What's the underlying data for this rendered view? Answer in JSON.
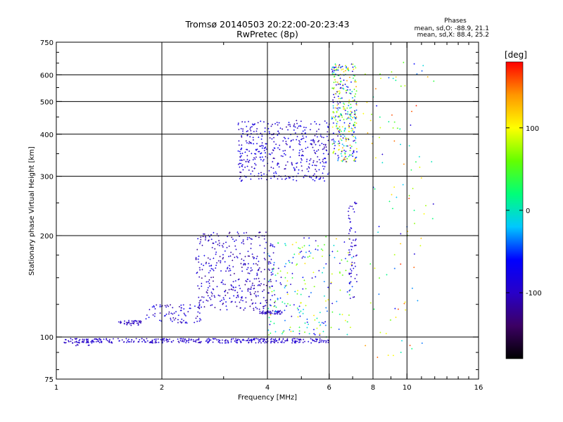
{
  "chart_data": {
    "type": "scatter",
    "title": "Tromsø 20140503 20:22:00-20:23:43",
    "subtitle": "RwPretec (8p)",
    "xlabel": "Frequency [MHz]",
    "ylabel": "Stationary phase Virtual Height [km]",
    "x_scale": "log",
    "y_scale": "log",
    "xlim": [
      1,
      16
    ],
    "ylim": [
      75,
      750
    ],
    "x_ticks": [
      1,
      2,
      4,
      6,
      8,
      10,
      16
    ],
    "x_minor_ticks": [
      3,
      5,
      7,
      9,
      11,
      12,
      13,
      14,
      15
    ],
    "x_grid_lines": [
      2,
      4,
      6,
      8,
      10
    ],
    "y_ticks": [
      75,
      100,
      200,
      300,
      400,
      500,
      600,
      750
    ],
    "y_minor_ticks": [
      80,
      90,
      125,
      150,
      175,
      250,
      350,
      450,
      550,
      650,
      700
    ],
    "y_grid_lines": [
      100,
      200,
      300,
      400,
      500,
      600
    ],
    "stats_title": "Phases",
    "stats": [
      "mean, sd,O: -88.9, 21.1",
      "mean, sd,X: 88.4, 25.2"
    ],
    "colorbar": {
      "label": "[deg]",
      "range": [
        -180,
        180
      ],
      "ticks": [
        -100,
        0,
        100
      ],
      "palette": [
        "#000000",
        "#3c0064",
        "#2800c8",
        "#0000ff",
        "#00c8ff",
        "#00ff78",
        "#64ff00",
        "#ffff00",
        "#ff9600",
        "#ff0000"
      ]
    },
    "series": [
      {
        "x_range": [
          1.05,
          6.0
        ],
        "y_range": [
          96,
          99
        ],
        "phase": [
          -110,
          -80
        ],
        "count": 360
      },
      {
        "x_range": [
          1.1,
          1.25
        ],
        "y_range": [
          94,
          97
        ],
        "phase": [
          -110,
          -90
        ],
        "count": 12
      },
      {
        "x_range": [
          1.5,
          1.75
        ],
        "y_range": [
          108,
          112
        ],
        "phase": [
          -110,
          -90
        ],
        "count": 40
      },
      {
        "x_range": [
          1.8,
          2.6
        ],
        "y_range": [
          110,
          125
        ],
        "phase": [
          -120,
          -60
        ],
        "count": 80
      },
      {
        "x_range": [
          2.5,
          4.2
        ],
        "y_range": [
          120,
          205
        ],
        "phase": [
          -130,
          -70
        ],
        "count": 380
      },
      {
        "x_range": [
          3.8,
          4.4
        ],
        "y_range": [
          117,
          120
        ],
        "phase": [
          -110,
          -90
        ],
        "count": 50
      },
      {
        "x_range": [
          3.3,
          6.0
        ],
        "y_range": [
          290,
          440
        ],
        "phase": [
          -120,
          -60
        ],
        "count": 420
      },
      {
        "x_range": [
          6.1,
          7.2
        ],
        "y_range": [
          330,
          650
        ],
        "phase": [
          -120,
          140
        ],
        "count": 340
      },
      {
        "x_range": [
          4.0,
          7.0
        ],
        "y_range": [
          100,
          200
        ],
        "phase": [
          -110,
          120
        ],
        "count": 220
      },
      {
        "x_range": [
          6.8,
          7.2
        ],
        "y_range": [
          130,
          260
        ],
        "phase": [
          -110,
          -80
        ],
        "count": 60
      },
      {
        "x_range": [
          7.5,
          12.0
        ],
        "y_range": [
          85,
          660
        ],
        "phase": [
          -100,
          170
        ],
        "count": 110
      }
    ]
  }
}
